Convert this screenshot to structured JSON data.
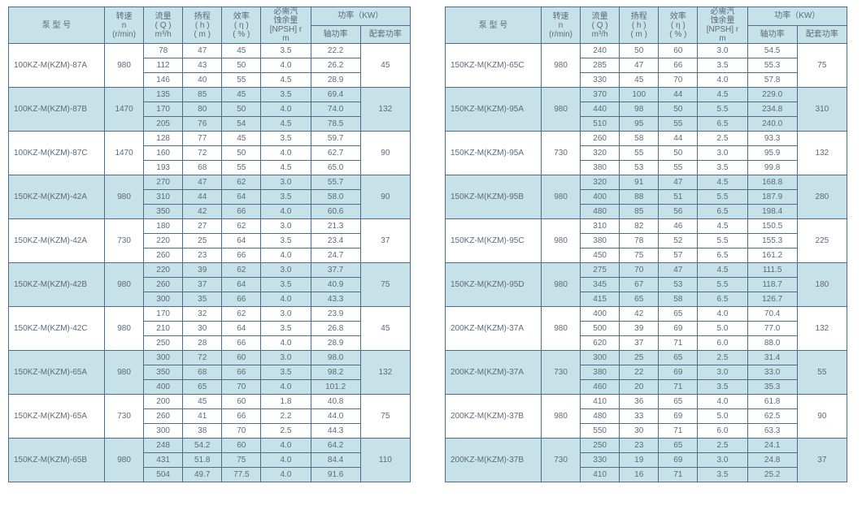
{
  "colors": {
    "border": "#4b6e8f",
    "band": "#c7e1e9",
    "text": "#5a6b7b",
    "bg": "#ffffff"
  },
  "header": {
    "model": "泵 型 号",
    "rpm_l1": "转速",
    "rpm_l2": "n",
    "rpm_l3": "(r/min)",
    "q_l1": "流量",
    "q_l2": "( Q )",
    "q_l3": "m³/h",
    "h_l1": "扬程",
    "h_l2": "( h )",
    "h_l3": "( m )",
    "eta_l1": "效率",
    "eta_l2": "( η )",
    "eta_l3": "( % )",
    "npsh_l1": "必需汽",
    "npsh_l2": "蚀余量",
    "npsh_l3": "[NPSH] r",
    "npsh_l4": "m",
    "power": "功率（KW）",
    "shaft": "轴功率",
    "match": "配套功率"
  },
  "left": [
    {
      "band": false,
      "model": "100KZ-M(KZM)-87A",
      "rpm": "980",
      "power": "45",
      "rows": [
        {
          "q": "78",
          "h": "47",
          "eta": "45",
          "npsh": "3.5",
          "sp": "22.2"
        },
        {
          "q": "112",
          "h": "43",
          "eta": "50",
          "npsh": "4.0",
          "sp": "26.2"
        },
        {
          "q": "146",
          "h": "40",
          "eta": "55",
          "npsh": "4.5",
          "sp": "28.9"
        }
      ]
    },
    {
      "band": true,
      "model": "100KZ-M(KZM)-87B",
      "rpm": "1470",
      "power": "132",
      "rows": [
        {
          "q": "135",
          "h": "85",
          "eta": "45",
          "npsh": "3.5",
          "sp": "69.4"
        },
        {
          "q": "170",
          "h": "80",
          "eta": "50",
          "npsh": "4.0",
          "sp": "74.0"
        },
        {
          "q": "205",
          "h": "76",
          "eta": "54",
          "npsh": "4.5",
          "sp": "78.5"
        }
      ]
    },
    {
      "band": false,
      "model": "100KZ-M(KZM)-87C",
      "rpm": "1470",
      "power": "90",
      "rows": [
        {
          "q": "128",
          "h": "77",
          "eta": "45",
          "npsh": "3.5",
          "sp": "59.7"
        },
        {
          "q": "160",
          "h": "72",
          "eta": "50",
          "npsh": "4.0",
          "sp": "62.7"
        },
        {
          "q": "193",
          "h": "68",
          "eta": "55",
          "npsh": "4.5",
          "sp": "65.0"
        }
      ]
    },
    {
      "band": true,
      "model": "150KZ-M(KZM)-42A",
      "rpm": "980",
      "power": "90",
      "rows": [
        {
          "q": "270",
          "h": "47",
          "eta": "62",
          "npsh": "3.0",
          "sp": "55.7"
        },
        {
          "q": "310",
          "h": "44",
          "eta": "64",
          "npsh": "3.5",
          "sp": "58.0"
        },
        {
          "q": "350",
          "h": "42",
          "eta": "66",
          "npsh": "4.0",
          "sp": "60.6"
        }
      ]
    },
    {
      "band": false,
      "model": "150KZ-M(KZM)-42A",
      "rpm": "730",
      "power": "37",
      "rows": [
        {
          "q": "180",
          "h": "27",
          "eta": "62",
          "npsh": "3.0",
          "sp": "21.3"
        },
        {
          "q": "220",
          "h": "25",
          "eta": "64",
          "npsh": "3.5",
          "sp": "23.4"
        },
        {
          "q": "260",
          "h": "23",
          "eta": "66",
          "npsh": "4.0",
          "sp": "24.7"
        }
      ]
    },
    {
      "band": true,
      "model": "150KZ-M(KZM)-42B",
      "rpm": "980",
      "power": "75",
      "rows": [
        {
          "q": "220",
          "h": "39",
          "eta": "62",
          "npsh": "3.0",
          "sp": "37.7"
        },
        {
          "q": "260",
          "h": "37",
          "eta": "64",
          "npsh": "3.5",
          "sp": "40.9"
        },
        {
          "q": "300",
          "h": "35",
          "eta": "66",
          "npsh": "4.0",
          "sp": "43.3"
        }
      ]
    },
    {
      "band": false,
      "model": "150KZ-M(KZM)-42C",
      "rpm": "980",
      "power": "45",
      "rows": [
        {
          "q": "170",
          "h": "32",
          "eta": "62",
          "npsh": "3.0",
          "sp": "23.9"
        },
        {
          "q": "210",
          "h": "30",
          "eta": "64",
          "npsh": "3.5",
          "sp": "26.8"
        },
        {
          "q": "250",
          "h": "28",
          "eta": "66",
          "npsh": "4.0",
          "sp": "28.9"
        }
      ]
    },
    {
      "band": true,
      "model": "150KZ-M(KZM)-65A",
      "rpm": "980",
      "power": "132",
      "rows": [
        {
          "q": "300",
          "h": "72",
          "eta": "60",
          "npsh": "3.0",
          "sp": "98.0"
        },
        {
          "q": "350",
          "h": "68",
          "eta": "66",
          "npsh": "3.5",
          "sp": "98.2"
        },
        {
          "q": "400",
          "h": "65",
          "eta": "70",
          "npsh": "4.0",
          "sp": "101.2"
        }
      ]
    },
    {
      "band": false,
      "model": "150KZ-M(KZM)-65A",
      "rpm": "730",
      "power": "75",
      "rows": [
        {
          "q": "200",
          "h": "45",
          "eta": "60",
          "npsh": "1.8",
          "sp": "40.8"
        },
        {
          "q": "260",
          "h": "41",
          "eta": "66",
          "npsh": "2.2",
          "sp": "44.0"
        },
        {
          "q": "300",
          "h": "38",
          "eta": "70",
          "npsh": "2.5",
          "sp": "44.3"
        }
      ]
    },
    {
      "band": true,
      "model": "150KZ-M(KZM)-65B",
      "rpm": "980",
      "power": "110",
      "rows": [
        {
          "q": "248",
          "h": "54.2",
          "eta": "60",
          "npsh": "4.0",
          "sp": "64.2"
        },
        {
          "q": "431",
          "h": "51.8",
          "eta": "75",
          "npsh": "4.0",
          "sp": "84.4"
        },
        {
          "q": "504",
          "h": "49.7",
          "eta": "77.5",
          "npsh": "4.0",
          "sp": "91.6"
        }
      ]
    }
  ],
  "right": [
    {
      "band": false,
      "model": "150KZ-M(KZM)-65C",
      "rpm": "980",
      "power": "75",
      "rows": [
        {
          "q": "240",
          "h": "50",
          "eta": "60",
          "npsh": "3.0",
          "sp": "54.5"
        },
        {
          "q": "285",
          "h": "47",
          "eta": "66",
          "npsh": "3.5",
          "sp": "55.3"
        },
        {
          "q": "330",
          "h": "45",
          "eta": "70",
          "npsh": "4.0",
          "sp": "57.8"
        }
      ]
    },
    {
      "band": true,
      "model": "150KZ-M(KZM)-95A",
      "rpm": "980",
      "power": "310",
      "rows": [
        {
          "q": "370",
          "h": "100",
          "eta": "44",
          "npsh": "4.5",
          "sp": "229.0"
        },
        {
          "q": "440",
          "h": "98",
          "eta": "50",
          "npsh": "5.5",
          "sp": "234.8"
        },
        {
          "q": "510",
          "h": "95",
          "eta": "55",
          "npsh": "6.5",
          "sp": "240.0"
        }
      ]
    },
    {
      "band": false,
      "model": "150KZ-M(KZM)-95A",
      "rpm": "730",
      "power": "132",
      "rows": [
        {
          "q": "260",
          "h": "58",
          "eta": "44",
          "npsh": "2.5",
          "sp": "93.3"
        },
        {
          "q": "320",
          "h": "55",
          "eta": "50",
          "npsh": "3.0",
          "sp": "95.9"
        },
        {
          "q": "380",
          "h": "53",
          "eta": "55",
          "npsh": "3.5",
          "sp": "99.8"
        }
      ]
    },
    {
      "band": true,
      "model": "150KZ-M(KZM)-95B",
      "rpm": "980",
      "power": "280",
      "rows": [
        {
          "q": "320",
          "h": "91",
          "eta": "47",
          "npsh": "4.5",
          "sp": "168.8"
        },
        {
          "q": "400",
          "h": "88",
          "eta": "51",
          "npsh": "5.5",
          "sp": "187.9"
        },
        {
          "q": "480",
          "h": "85",
          "eta": "56",
          "npsh": "6.5",
          "sp": "198.4"
        }
      ]
    },
    {
      "band": false,
      "model": "150KZ-M(KZM)-95C",
      "rpm": "980",
      "power": "225",
      "rows": [
        {
          "q": "310",
          "h": "82",
          "eta": "46",
          "npsh": "4.5",
          "sp": "150.5"
        },
        {
          "q": "380",
          "h": "78",
          "eta": "52",
          "npsh": "5.5",
          "sp": "155.3"
        },
        {
          "q": "450",
          "h": "75",
          "eta": "57",
          "npsh": "6.5",
          "sp": "161.2"
        }
      ]
    },
    {
      "band": true,
      "model": "150KZ-M(KZM)-95D",
      "rpm": "980",
      "power": "180",
      "rows": [
        {
          "q": "275",
          "h": "70",
          "eta": "47",
          "npsh": "4.5",
          "sp": "111.5"
        },
        {
          "q": "345",
          "h": "67",
          "eta": "53",
          "npsh": "5.5",
          "sp": "118.7"
        },
        {
          "q": "415",
          "h": "65",
          "eta": "58",
          "npsh": "6.5",
          "sp": "126.7"
        }
      ]
    },
    {
      "band": false,
      "model": "200KZ-M(KZM)-37A",
      "rpm": "980",
      "power": "132",
      "rows": [
        {
          "q": "400",
          "h": "42",
          "eta": "65",
          "npsh": "4.0",
          "sp": "70.4"
        },
        {
          "q": "500",
          "h": "39",
          "eta": "69",
          "npsh": "5.0",
          "sp": "77.0"
        },
        {
          "q": "620",
          "h": "37",
          "eta": "71",
          "npsh": "6.0",
          "sp": "88.0"
        }
      ]
    },
    {
      "band": true,
      "model": "200KZ-M(KZM)-37A",
      "rpm": "730",
      "power": "55",
      "rows": [
        {
          "q": "300",
          "h": "25",
          "eta": "65",
          "npsh": "2.5",
          "sp": "31.4"
        },
        {
          "q": "380",
          "h": "22",
          "eta": "69",
          "npsh": "3.0",
          "sp": "33.0"
        },
        {
          "q": "460",
          "h": "20",
          "eta": "71",
          "npsh": "3.5",
          "sp": "35.3"
        }
      ]
    },
    {
      "band": false,
      "model": "200KZ-M(KZM)-37B",
      "rpm": "980",
      "power": "90",
      "rows": [
        {
          "q": "410",
          "h": "36",
          "eta": "65",
          "npsh": "4.0",
          "sp": "61.8"
        },
        {
          "q": "480",
          "h": "33",
          "eta": "69",
          "npsh": "5.0",
          "sp": "62.5"
        },
        {
          "q": "550",
          "h": "30",
          "eta": "71",
          "npsh": "6.0",
          "sp": "63.3"
        }
      ]
    },
    {
      "band": true,
      "model": "200KZ-M(KZM)-37B",
      "rpm": "730",
      "power": "37",
      "rows": [
        {
          "q": "250",
          "h": "23",
          "eta": "65",
          "npsh": "2.5",
          "sp": "24.1"
        },
        {
          "q": "330",
          "h": "19",
          "eta": "69",
          "npsh": "3.0",
          "sp": "24.8"
        },
        {
          "q": "410",
          "h": "16",
          "eta": "71",
          "npsh": "3.5",
          "sp": "25.2"
        }
      ]
    }
  ]
}
